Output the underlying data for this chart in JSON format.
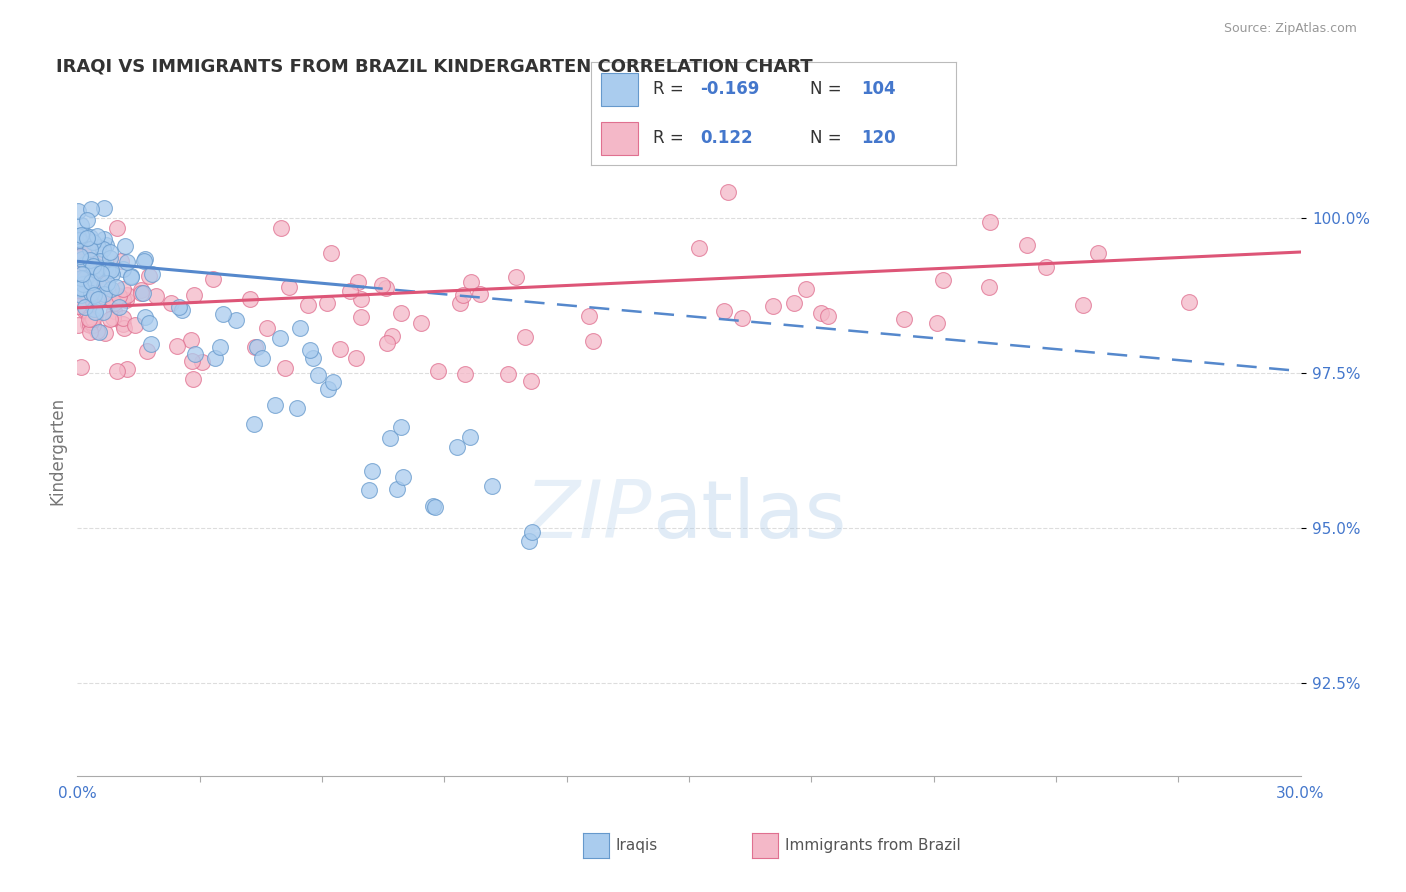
{
  "title": "IRAQI VS IMMIGRANTS FROM BRAZIL KINDERGARTEN CORRELATION CHART",
  "source": "Source: ZipAtlas.com",
  "ylabel": "Kindergarten",
  "yticks": [
    92.5,
    95.0,
    97.5,
    100.0
  ],
  "ytick_labels": [
    "92.5%",
    "95.0%",
    "97.5%",
    "100.0%"
  ],
  "xlim": [
    0.0,
    30.0
  ],
  "ylim": [
    91.0,
    101.5
  ],
  "legend_iraqi_R": "-0.169",
  "legend_iraqi_N": "104",
  "legend_brazil_R": "0.122",
  "legend_brazil_N": "120",
  "legend_label_iraqi": "Iraqis",
  "legend_label_brazil": "Immigrants from Brazil",
  "color_iraqi_fill": "#aaccee",
  "color_iraqi_edge": "#6699cc",
  "color_brazil_fill": "#f4b8c8",
  "color_brazil_edge": "#e07090",
  "color_trend_iraqi": "#5588cc",
  "color_trend_brazil": "#dd5577",
  "color_rtick": "#4477cc",
  "background_color": "#ffffff",
  "grid_color": "#dddddd",
  "title_color": "#333333",
  "source_color": "#999999",
  "ylabel_color": "#777777",
  "legend_text_color": "#333333",
  "legend_value_color": "#4477cc",
  "bottom_label_color": "#555555"
}
